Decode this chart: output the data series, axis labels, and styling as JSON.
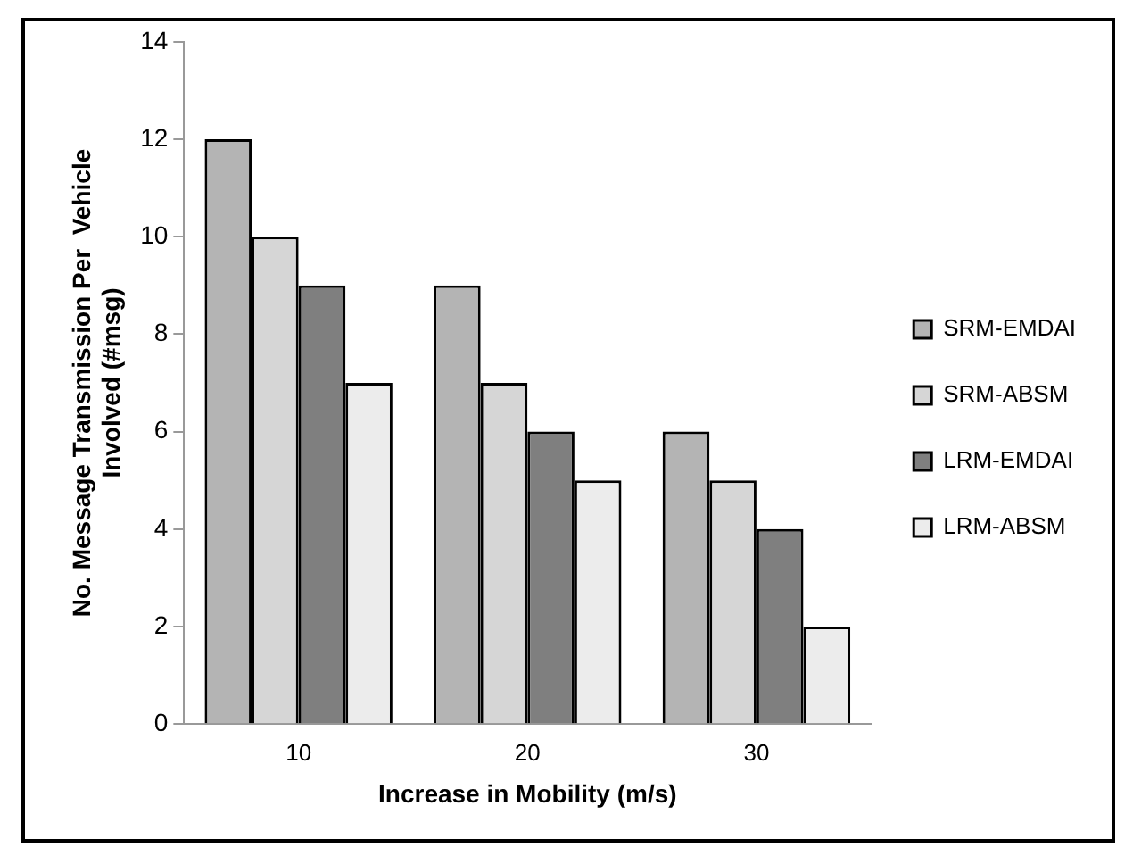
{
  "chart_data": {
    "type": "bar",
    "xlabel": "Increase in Mobility (m/s)",
    "ylabel": "No. Message Transmission Per  Vehicle\nInvolved (#msg)",
    "categories": [
      "10",
      "20",
      "30"
    ],
    "series": [
      {
        "name": "SRM-EMDAI",
        "color": "#b4b4b4",
        "values": [
          12,
          9,
          6
        ]
      },
      {
        "name": "SRM-ABSM",
        "color": "#d6d6d6",
        "values": [
          10,
          7,
          5
        ]
      },
      {
        "name": "LRM-EMDAI",
        "color": "#7f7f7f",
        "values": [
          9,
          6,
          4
        ]
      },
      {
        "name": "LRM-ABSM",
        "color": "#ececec",
        "values": [
          7,
          5,
          2
        ]
      }
    ],
    "ylim": [
      0,
      14
    ],
    "yticks": [
      0,
      2,
      4,
      6,
      8,
      10,
      12,
      14
    ],
    "grid": false,
    "legend": "right"
  }
}
